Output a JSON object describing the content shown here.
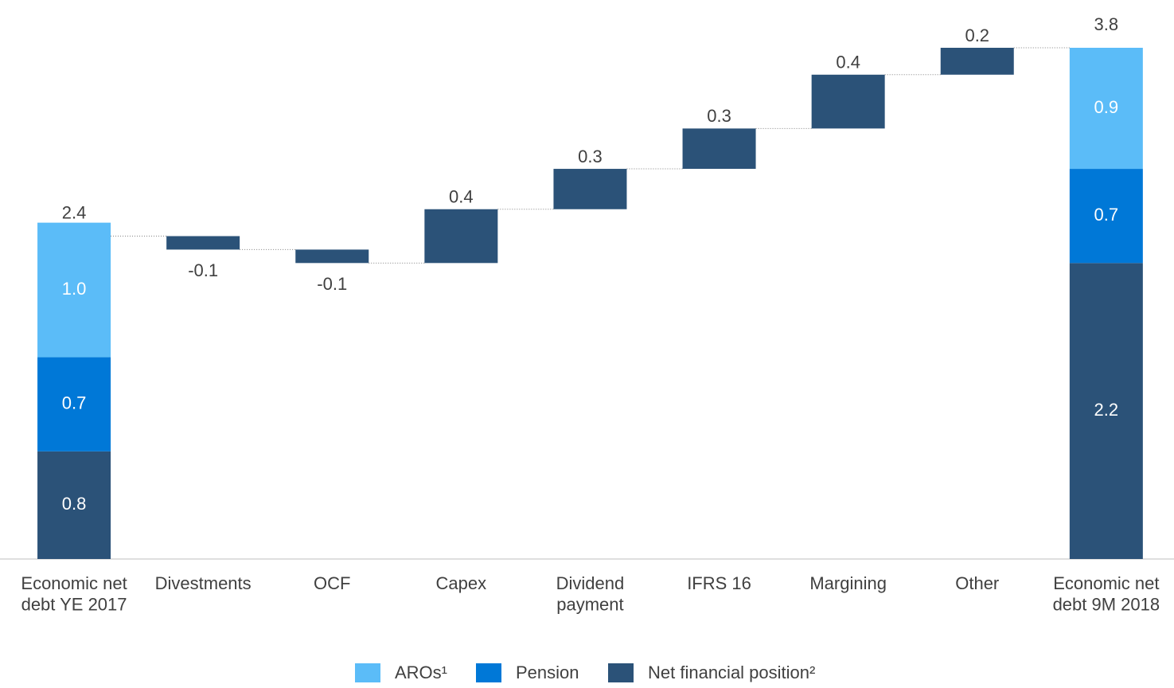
{
  "chart_data": {
    "type": "waterfall",
    "categories": [
      "Economic net\ndebt YE 2017",
      "Divestments",
      "OCF",
      "Capex",
      "Dividend\npayment",
      "IFRS 16",
      "Margining",
      "Other",
      "Economic net\ndebt 9M 2018"
    ],
    "totals": [
      2.4,
      null,
      null,
      null,
      null,
      null,
      null,
      null,
      3.8
    ],
    "values": [
      null,
      -0.1,
      -0.1,
      0.4,
      0.3,
      0.3,
      0.4,
      0.2,
      null
    ],
    "color": "#2b5278",
    "series": [
      {
        "name": "AROs¹",
        "color": "#5bbcf8",
        "values": [
          1.0,
          null,
          null,
          null,
          null,
          null,
          null,
          null,
          0.9
        ]
      },
      {
        "name": "Pension",
        "color": "#0078d7",
        "values": [
          0.7,
          null,
          null,
          null,
          null,
          null,
          null,
          null,
          0.7
        ]
      },
      {
        "name": "Net financial position²",
        "color": "#2b5278",
        "values": [
          0.8,
          null,
          null,
          null,
          null,
          null,
          null,
          null,
          2.2
        ]
      }
    ],
    "value_labels": [
      "2.4",
      "-0.1",
      "-0.1",
      "0.4",
      "0.3",
      "0.3",
      "0.4",
      "0.2",
      "3.8"
    ],
    "series_value_labels": [
      [
        "1.0",
        null,
        null,
        null,
        null,
        null,
        null,
        null,
        "0.9"
      ],
      [
        "0.7",
        null,
        null,
        null,
        null,
        null,
        null,
        null,
        "0.7"
      ],
      [
        "0.8",
        null,
        null,
        null,
        null,
        null,
        null,
        null,
        "2.2"
      ]
    ]
  }
}
